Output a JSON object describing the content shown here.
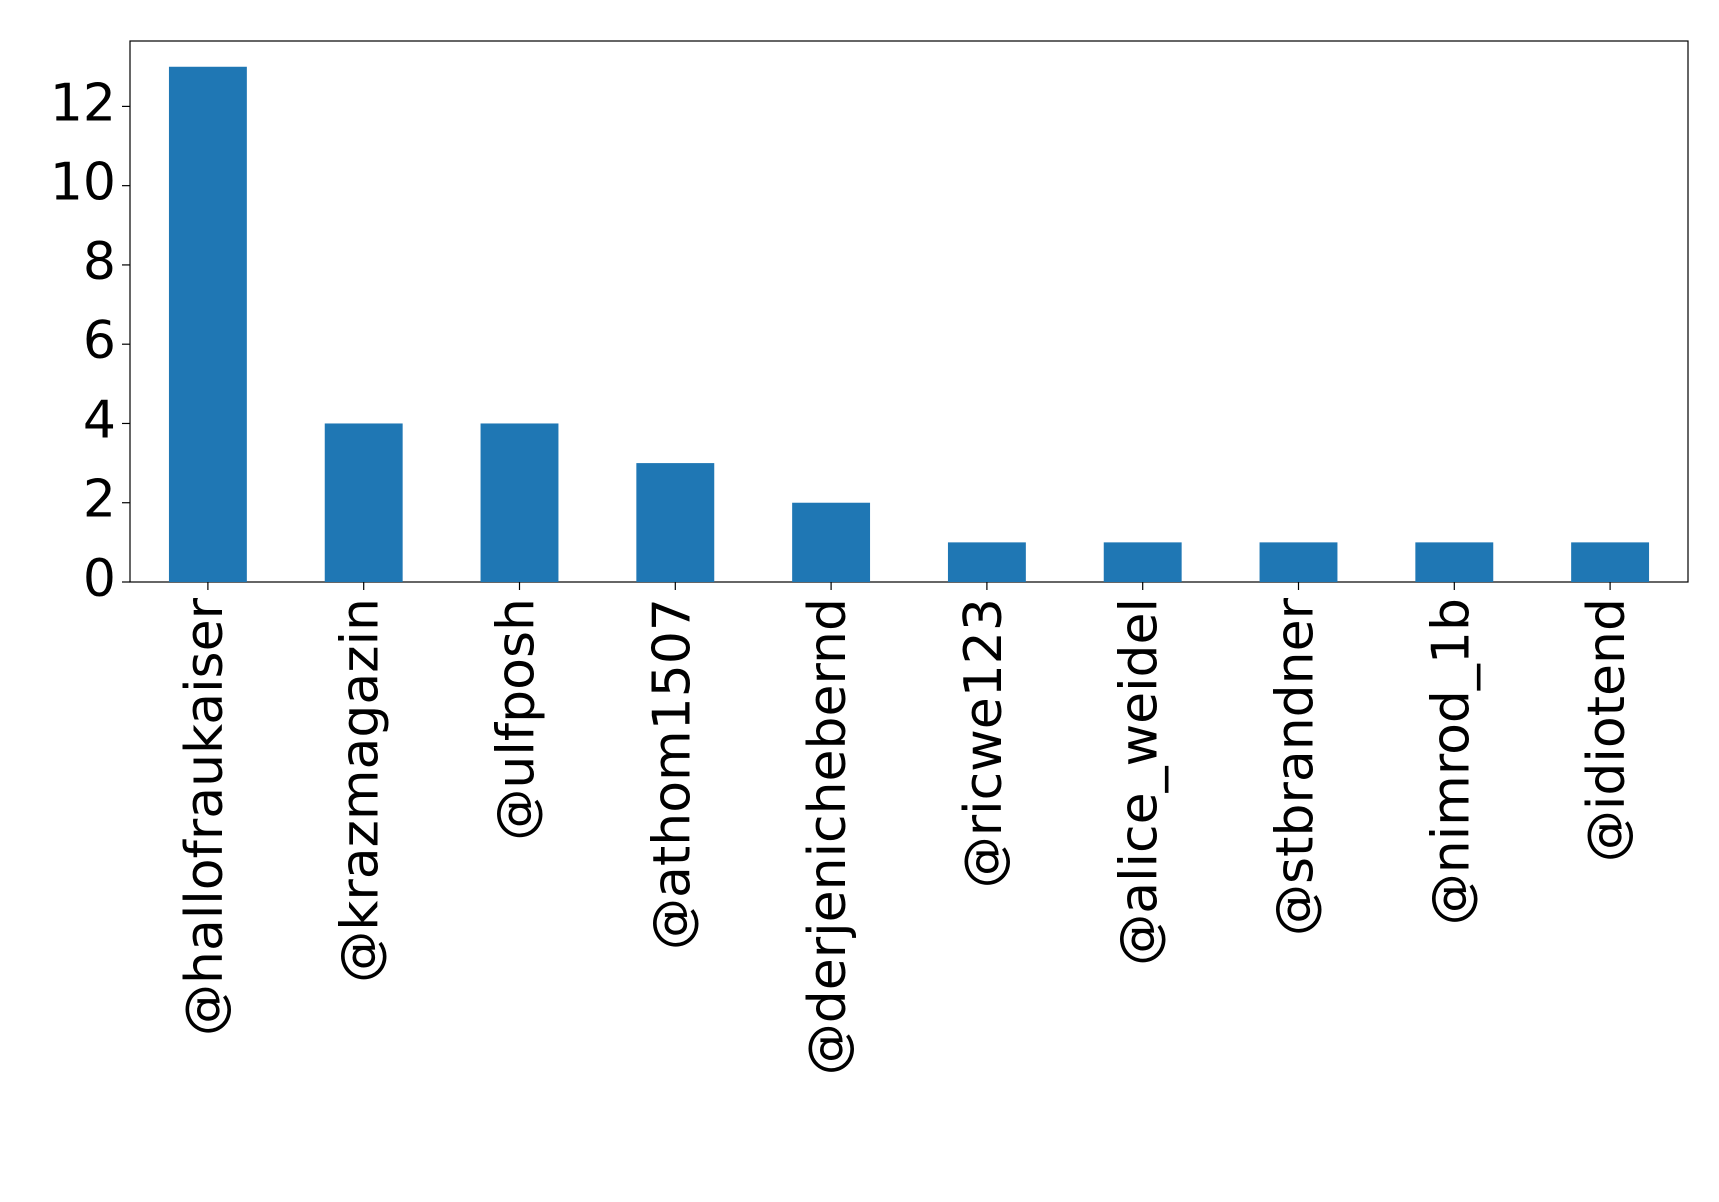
{
  "chart_data": {
    "type": "bar",
    "categories": [
      "@hallofraukaiser",
      "@krazmagazin",
      "@ulfposh",
      "@athom1507",
      "@derjenichebernd",
      "@ricwe123",
      "@alice_weidel",
      "@stbrandner",
      "@nimrod_1b",
      "@idiotend"
    ],
    "values": [
      13,
      4,
      4,
      3,
      2,
      1,
      1,
      1,
      1,
      1
    ],
    "color": "#1f77b4",
    "ylim": [
      0,
      13.65
    ],
    "yticks": [
      0,
      2,
      4,
      6,
      8,
      10,
      12
    ],
    "grid": false
  }
}
